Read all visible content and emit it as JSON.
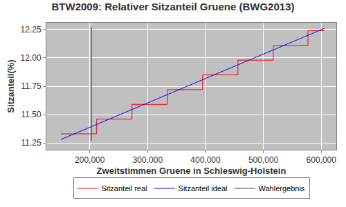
{
  "chart_data": {
    "type": "line",
    "title": "BTW2009: Relativer Sitzanteil Gruene (BWG2013)",
    "x_label": "Zweitstimmen Gruene in Schleswig-Holstein",
    "y_label": "Sitzanteil(%)",
    "series": [
      {
        "name": "Sitzanteil real",
        "color": "#ff0000",
        "line_style": "step",
        "x": [
          150000,
          212000,
          273000,
          334000,
          395000,
          456000,
          517000,
          577000,
          605000
        ],
        "values": [
          11.33,
          11.46,
          11.59,
          11.72,
          11.85,
          11.98,
          12.11,
          12.24,
          12.24
        ]
      },
      {
        "name": "Sitzanteil ideal",
        "color": "#0000ff",
        "line_style": "solid",
        "x": [
          150000,
          605000
        ],
        "values": [
          11.28,
          12.26
        ]
      },
      {
        "name": "Wahlergebnis",
        "color": "#404040",
        "line_style": "solid",
        "x": [
          203000,
          203000
        ],
        "values": [
          11.27,
          12.27
        ]
      }
    ],
    "xlim": [
      125000,
      626000
    ],
    "xticks": [
      {
        "value": 200000,
        "label": "200,000"
      },
      {
        "value": 300000,
        "label": "300,000"
      },
      {
        "value": 400000,
        "label": "400,000"
      },
      {
        "value": 500000,
        "label": "500,000"
      },
      {
        "value": 600000,
        "label": "600,000"
      }
    ],
    "ylim": [
      11.19,
      12.31
    ],
    "yticks": [
      11.25,
      {
        "value": 11.5,
        "label": "11.50"
      },
      11.75,
      {
        "value": 12,
        "label": "12.00"
      },
      12.25
    ],
    "grid": true,
    "legend": "bottom"
  }
}
